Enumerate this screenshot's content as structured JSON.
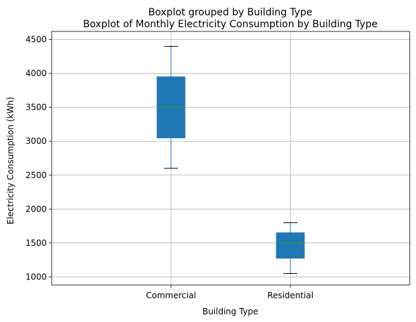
{
  "chart_data": {
    "type": "boxplot",
    "suptitle": "Boxplot grouped by Building Type",
    "title": "Boxplot of Monthly Electricity Consumption by Building Type",
    "xlabel": "Building Type",
    "ylabel": "Electricity Consumption (kWh)",
    "ylim": [
      880,
      4620
    ],
    "yticks": [
      1000,
      1500,
      2000,
      2500,
      3000,
      3500,
      4000,
      4500
    ],
    "grid": true,
    "categories": [
      "Commercial",
      "Residential"
    ],
    "boxes": [
      {
        "category": "Commercial",
        "whisker_low": 2600,
        "q1": 3050,
        "median": 3500,
        "q3": 3950,
        "whisker_high": 4400
      },
      {
        "category": "Residential",
        "whisker_low": 1050,
        "q1": 1275,
        "median": 1500,
        "q3": 1650,
        "whisker_high": 1800
      }
    ],
    "colors": {
      "box_fill": "#1f77b4",
      "median": "#2ca02c",
      "whisker": "#1f77b4",
      "cap": "#000000",
      "grid": "#b0b0b0",
      "axis": "#000000"
    }
  }
}
